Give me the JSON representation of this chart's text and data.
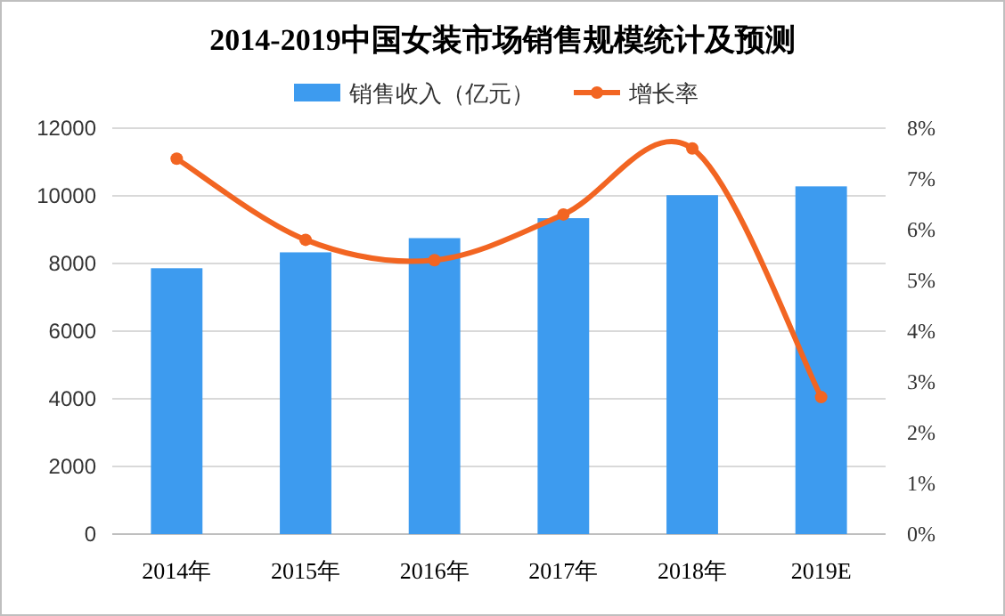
{
  "chart_data": {
    "type": "bar",
    "title": "2014-2019中国女装市场销售规模统计及预测",
    "categories": [
      "2014年",
      "2015年",
      "2016年",
      "2017年",
      "2018年",
      "2019E"
    ],
    "series": [
      {
        "name": "销售收入（亿元）",
        "color": "#3d9bef",
        "values": [
          7860,
          8330,
          8750,
          9340,
          10020,
          10280
        ]
      },
      {
        "name": "增长率",
        "type": "line",
        "axis": "y2",
        "color": "#f26522",
        "marker": "circle",
        "values": [
          7.4,
          5.8,
          5.4,
          6.3,
          7.6,
          2.7
        ]
      }
    ],
    "ylim": [
      0,
      12000
    ],
    "yticks": [
      0,
      2000,
      4000,
      6000,
      8000,
      10000,
      12000
    ],
    "y2lim": [
      0,
      8
    ],
    "y2ticks": [
      {
        "value": 0,
        "label": "0%"
      },
      {
        "value": 1,
        "label": "1%"
      },
      {
        "value": 2,
        "label": "2%"
      },
      {
        "value": 3,
        "label": "3%"
      },
      {
        "value": 4,
        "label": "4%"
      },
      {
        "value": 5,
        "label": "5%"
      },
      {
        "value": 6,
        "label": "6%"
      },
      {
        "value": 7,
        "label": "7%"
      },
      {
        "value": 8,
        "label": "8%"
      }
    ],
    "grid": "y",
    "legend": "top"
  }
}
